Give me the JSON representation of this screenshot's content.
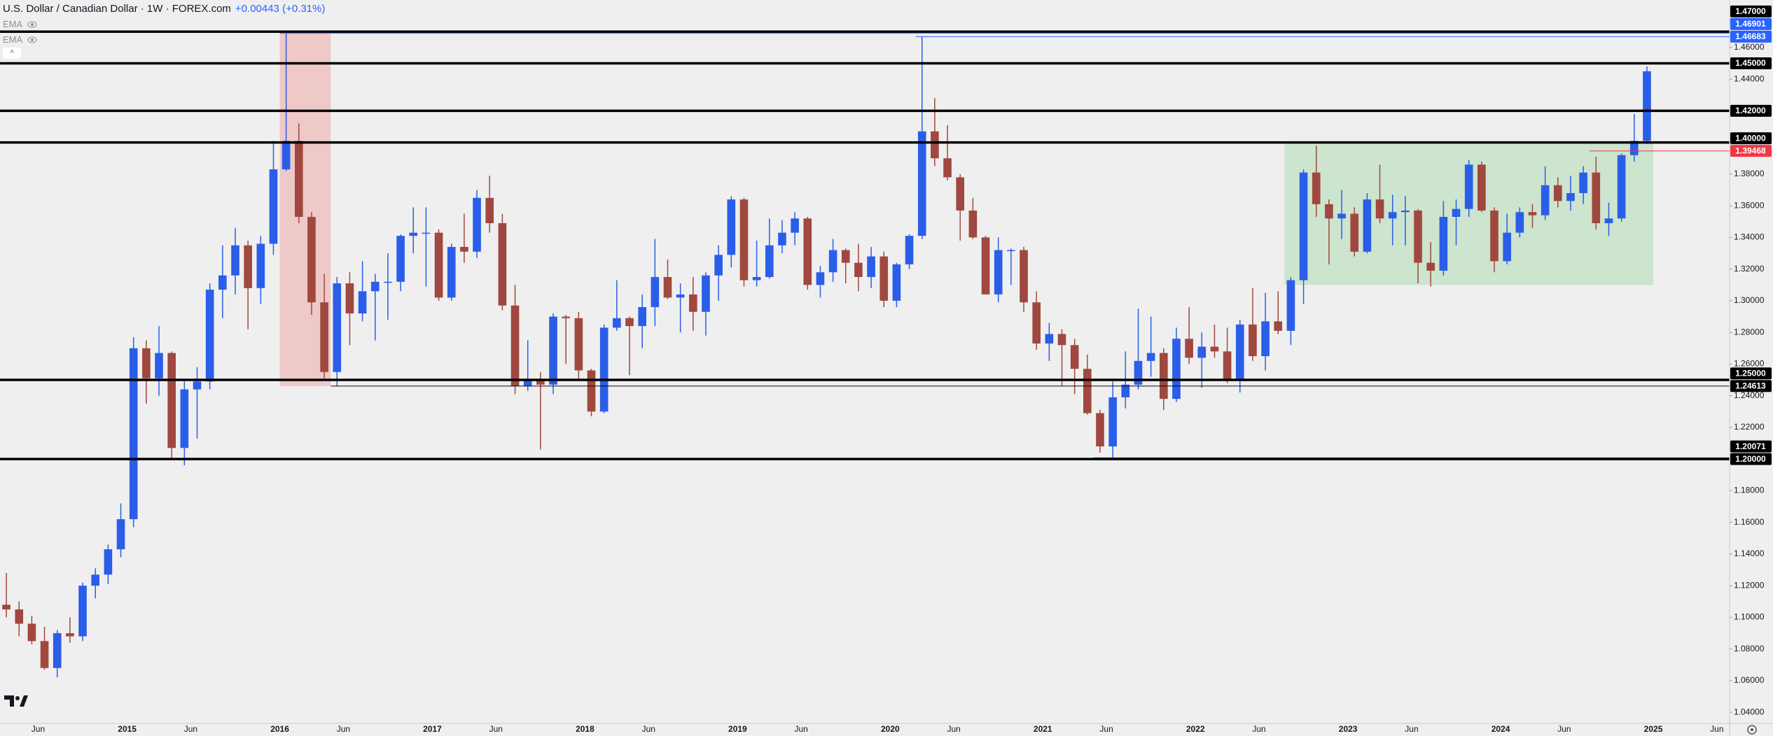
{
  "chart_data": {
    "type": "candlestick",
    "title": "U.S. Dollar / Canadian Dollar · 1W · FOREX.com",
    "change": "+0.00443 (+0.31%)",
    "indicators": [
      "EMA",
      "EMA"
    ],
    "up_color": "#2a5ee8",
    "down_color": "#a0483f",
    "xlim": [
      "2014-03",
      "2025-07"
    ],
    "ylim": [
      1.033,
      1.49
    ],
    "xticks": [
      {
        "value": "2014-06",
        "label": "Jun"
      },
      {
        "value": "2015-01",
        "label": "2015"
      },
      {
        "value": "2015-06",
        "label": "Jun"
      },
      {
        "value": "2016-01",
        "label": "2016"
      },
      {
        "value": "2016-06",
        "label": "Jun"
      },
      {
        "value": "2017-01",
        "label": "2017"
      },
      {
        "value": "2017-06",
        "label": "Jun"
      },
      {
        "value": "2018-01",
        "label": "2018"
      },
      {
        "value": "2018-06",
        "label": "Jun"
      },
      {
        "value": "2019-01",
        "label": "2019"
      },
      {
        "value": "2019-06",
        "label": "Jun"
      },
      {
        "value": "2020-01",
        "label": "2020"
      },
      {
        "value": "2020-06",
        "label": "Jun"
      },
      {
        "value": "2021-01",
        "label": "2021"
      },
      {
        "value": "2021-06",
        "label": "Jun"
      },
      {
        "value": "2022-01",
        "label": "2022"
      },
      {
        "value": "2022-06",
        "label": "Jun"
      },
      {
        "value": "2023-01",
        "label": "2023"
      },
      {
        "value": "2023-06",
        "label": "Jun"
      },
      {
        "value": "2024-01",
        "label": "2024"
      },
      {
        "value": "2024-06",
        "label": "Jun"
      },
      {
        "value": "2025-01",
        "label": "2025"
      },
      {
        "value": "2025-06",
        "label": "Jun"
      }
    ],
    "yticks": [
      {
        "value": 1.04,
        "label": "1.04000"
      },
      {
        "value": 1.06,
        "label": "1.06000"
      },
      {
        "value": 1.08,
        "label": "1.08000"
      },
      {
        "value": 1.1,
        "label": "1.10000"
      },
      {
        "value": 1.12,
        "label": "1.12000"
      },
      {
        "value": 1.14,
        "label": "1.14000"
      },
      {
        "value": 1.16,
        "label": "1.16000"
      },
      {
        "value": 1.18,
        "label": "1.18000"
      },
      {
        "value": 1.22,
        "label": "1.22000"
      },
      {
        "value": 1.24,
        "label": "1.24000"
      },
      {
        "value": 1.26,
        "label": "1.26000"
      },
      {
        "value": 1.28,
        "label": "1.28000"
      },
      {
        "value": 1.3,
        "label": "1.30000"
      },
      {
        "value": 1.32,
        "label": "1.32000"
      },
      {
        "value": 1.34,
        "label": "1.34000"
      },
      {
        "value": 1.36,
        "label": "1.36000"
      },
      {
        "value": 1.38,
        "label": "1.38000"
      },
      {
        "value": 1.44,
        "label": "1.44000"
      },
      {
        "value": 1.46,
        "label": "1.46000"
      }
    ],
    "price_lines": [
      {
        "value": 1.47,
        "label": "1.47000",
        "color": "#000000",
        "style": "thick"
      },
      {
        "value": 1.46901,
        "label": "1.46901",
        "color": "#2962ff",
        "style": "thin",
        "from": "2016-01"
      },
      {
        "value": 1.46683,
        "label": "1.46683",
        "color": "#2962ff",
        "style": "thin",
        "from": "2020-03"
      },
      {
        "value": 1.45,
        "label": "1.45000",
        "color": "#000000",
        "style": "thick"
      },
      {
        "value": 1.42,
        "label": "1.42000",
        "color": "#000000",
        "style": "thick"
      },
      {
        "value": 1.4,
        "label": "1.40000",
        "color": "#000000",
        "style": "thick"
      },
      {
        "value": 1.39468,
        "label": "1.39468",
        "color": "#f23645",
        "style": "thin",
        "from": "2024-08"
      },
      {
        "value": 1.25,
        "label": "1.25000",
        "color": "#000000",
        "style": "thick"
      },
      {
        "value": 1.24613,
        "label": "1.24613",
        "color": "#000000",
        "style": "thin",
        "from": "2016-05"
      },
      {
        "value": 1.20071,
        "label": "1.20071",
        "color": "#000000",
        "style": "thin",
        "from": "2021-05"
      },
      {
        "value": 1.2,
        "label": "1.20000",
        "color": "#000000",
        "style": "thick"
      }
    ],
    "zones": [
      {
        "x": [
          "2016-01",
          "2016-05"
        ],
        "y": [
          1.24613,
          1.47
        ],
        "color": "#ef9a9a"
      },
      {
        "x": [
          "2022-08",
          "2025-01"
        ],
        "y": [
          1.31,
          1.4
        ],
        "color": "#a5d6a7"
      }
    ],
    "x": [
      "2014-03",
      "2014-04",
      "2014-05",
      "2014-06",
      "2014-07",
      "2014-08",
      "2014-09",
      "2014-10",
      "2014-11",
      "2014-12",
      "2015-01",
      "2015-02",
      "2015-03",
      "2015-04",
      "2015-05",
      "2015-06",
      "2015-07",
      "2015-08",
      "2015-09",
      "2015-10",
      "2015-11",
      "2015-12",
      "2016-01",
      "2016-02",
      "2016-03",
      "2016-04",
      "2016-05",
      "2016-06",
      "2016-07",
      "2016-08",
      "2016-09",
      "2016-10",
      "2016-11",
      "2016-12",
      "2017-01",
      "2017-02",
      "2017-03",
      "2017-04",
      "2017-05",
      "2017-06",
      "2017-07",
      "2017-08",
      "2017-09",
      "2017-10",
      "2017-11",
      "2017-12",
      "2018-01",
      "2018-02",
      "2018-03",
      "2018-04",
      "2018-05",
      "2018-06",
      "2018-07",
      "2018-08",
      "2018-09",
      "2018-10",
      "2018-11",
      "2018-12",
      "2019-01",
      "2019-02",
      "2019-03",
      "2019-04",
      "2019-05",
      "2019-06",
      "2019-07",
      "2019-08",
      "2019-09",
      "2019-10",
      "2019-11",
      "2019-12",
      "2020-01",
      "2020-02",
      "2020-03",
      "2020-04",
      "2020-05",
      "2020-06",
      "2020-07",
      "2020-08",
      "2020-09",
      "2020-10",
      "2020-11",
      "2020-12",
      "2021-01",
      "2021-02",
      "2021-03",
      "2021-04",
      "2021-05",
      "2021-06",
      "2021-07",
      "2021-08",
      "2021-09",
      "2021-10",
      "2021-11",
      "2021-12",
      "2022-01",
      "2022-02",
      "2022-03",
      "2022-04",
      "2022-05",
      "2022-06",
      "2022-07",
      "2022-08",
      "2022-09",
      "2022-10",
      "2022-11",
      "2022-12",
      "2023-01",
      "2023-02",
      "2023-03",
      "2023-04",
      "2023-05",
      "2023-06",
      "2023-07",
      "2023-08",
      "2023-09",
      "2023-10",
      "2023-11",
      "2023-12",
      "2024-01",
      "2024-02",
      "2024-03",
      "2024-04",
      "2024-05",
      "2024-06",
      "2024-07",
      "2024-08",
      "2024-09",
      "2024-10",
      "2024-11",
      "2024-12"
    ],
    "open": [
      1.108,
      1.105,
      1.096,
      1.085,
      1.068,
      1.09,
      1.088,
      1.12,
      1.127,
      1.143,
      1.162,
      1.27,
      1.251,
      1.267,
      1.207,
      1.244,
      1.249,
      1.307,
      1.316,
      1.335,
      1.308,
      1.336,
      1.383,
      1.401,
      1.353,
      1.299,
      1.255,
      1.311,
      1.292,
      1.306,
      1.312,
      1.312,
      1.341,
      1.343,
      1.343,
      1.302,
      1.334,
      1.331,
      1.365,
      1.349,
      1.297,
      1.246,
      1.25,
      1.247,
      1.29,
      1.289,
      1.256,
      1.23,
      1.283,
      1.289,
      1.284,
      1.296,
      1.315,
      1.302,
      1.304,
      1.293,
      1.316,
      1.329,
      1.364,
      1.313,
      1.315,
      1.335,
      1.343,
      1.352,
      1.31,
      1.318,
      1.332,
      1.324,
      1.315,
      1.328,
      1.3,
      1.323,
      1.341,
      1.407,
      1.39,
      1.378,
      1.357,
      1.34,
      1.304,
      1.332,
      1.332,
      1.299,
      1.273,
      1.279,
      1.272,
      1.257,
      1.229,
      1.208,
      1.239,
      1.247,
      1.262,
      1.267,
      1.238,
      1.276,
      1.264,
      1.271,
      1.268,
      1.25,
      1.285,
      1.265,
      1.287,
      1.281,
      1.313,
      1.381,
      1.361,
      1.352,
      1.355,
      1.331,
      1.364,
      1.352,
      1.356,
      1.357,
      1.324,
      1.319,
      1.353,
      1.358,
      1.386,
      1.357,
      1.325,
      1.343,
      1.356,
      1.354,
      1.373,
      1.363,
      1.368,
      1.381,
      1.349,
      1.352,
      1.392,
      1.401
    ],
    "high": [
      1.128,
      1.11,
      1.101,
      1.094,
      1.092,
      1.1,
      1.122,
      1.131,
      1.146,
      1.172,
      1.277,
      1.275,
      1.284,
      1.268,
      1.249,
      1.258,
      1.311,
      1.335,
      1.346,
      1.338,
      1.341,
      1.401,
      1.469,
      1.412,
      1.356,
      1.317,
      1.315,
      1.318,
      1.325,
      1.317,
      1.33,
      1.342,
      1.359,
      1.359,
      1.345,
      1.336,
      1.355,
      1.37,
      1.379,
      1.355,
      1.31,
      1.275,
      1.255,
      1.292,
      1.291,
      1.293,
      1.257,
      1.285,
      1.313,
      1.29,
      1.304,
      1.339,
      1.326,
      1.311,
      1.315,
      1.318,
      1.335,
      1.366,
      1.365,
      1.338,
      1.352,
      1.351,
      1.356,
      1.353,
      1.322,
      1.339,
      1.333,
      1.336,
      1.334,
      1.331,
      1.324,
      1.342,
      1.467,
      1.428,
      1.411,
      1.38,
      1.365,
      1.341,
      1.34,
      1.333,
      1.334,
      1.306,
      1.286,
      1.282,
      1.276,
      1.266,
      1.231,
      1.249,
      1.268,
      1.295,
      1.29,
      1.27,
      1.283,
      1.296,
      1.28,
      1.285,
      1.283,
      1.288,
      1.308,
      1.305,
      1.306,
      1.315,
      1.383,
      1.398,
      1.364,
      1.37,
      1.359,
      1.368,
      1.386,
      1.367,
      1.366,
      1.358,
      1.337,
      1.363,
      1.364,
      1.389,
      1.388,
      1.359,
      1.355,
      1.359,
      1.361,
      1.385,
      1.378,
      1.379,
      1.385,
      1.391,
      1.362,
      1.393,
      1.418,
      1.448
    ],
    "low": [
      1.1,
      1.088,
      1.083,
      1.067,
      1.062,
      1.084,
      1.085,
      1.112,
      1.121,
      1.138,
      1.157,
      1.235,
      1.24,
      1.2,
      1.196,
      1.213,
      1.244,
      1.289,
      1.304,
      1.282,
      1.298,
      1.329,
      1.382,
      1.349,
      1.291,
      1.251,
      1.246,
      1.272,
      1.287,
      1.275,
      1.288,
      1.306,
      1.33,
      1.309,
      1.3,
      1.3,
      1.324,
      1.327,
      1.343,
      1.294,
      1.241,
      1.243,
      1.206,
      1.241,
      1.26,
      1.25,
      1.227,
      1.229,
      1.281,
      1.253,
      1.27,
      1.284,
      1.301,
      1.28,
      1.281,
      1.278,
      1.3,
      1.321,
      1.309,
      1.309,
      1.314,
      1.33,
      1.335,
      1.307,
      1.302,
      1.312,
      1.311,
      1.306,
      1.308,
      1.296,
      1.296,
      1.32,
      1.339,
      1.385,
      1.376,
      1.338,
      1.339,
      1.304,
      1.299,
      1.31,
      1.293,
      1.269,
      1.262,
      1.246,
      1.241,
      1.228,
      1.204,
      1.201,
      1.232,
      1.244,
      1.252,
      1.231,
      1.236,
      1.26,
      1.245,
      1.264,
      1.248,
      1.242,
      1.262,
      1.256,
      1.279,
      1.272,
      1.298,
      1.353,
      1.323,
      1.339,
      1.328,
      1.33,
      1.349,
      1.335,
      1.335,
      1.311,
      1.309,
      1.316,
      1.335,
      1.353,
      1.356,
      1.318,
      1.323,
      1.34,
      1.346,
      1.351,
      1.359,
      1.357,
      1.361,
      1.345,
      1.341,
      1.35,
      1.388,
      1.399
    ],
    "close": [
      1.105,
      1.096,
      1.085,
      1.068,
      1.09,
      1.088,
      1.12,
      1.127,
      1.143,
      1.162,
      1.27,
      1.251,
      1.267,
      1.207,
      1.244,
      1.249,
      1.307,
      1.316,
      1.335,
      1.308,
      1.336,
      1.383,
      1.401,
      1.353,
      1.299,
      1.255,
      1.311,
      1.292,
      1.306,
      1.312,
      1.312,
      1.341,
      1.343,
      1.343,
      1.302,
      1.334,
      1.331,
      1.365,
      1.349,
      1.297,
      1.246,
      1.25,
      1.247,
      1.29,
      1.289,
      1.256,
      1.23,
      1.283,
      1.289,
      1.284,
      1.296,
      1.315,
      1.302,
      1.304,
      1.293,
      1.316,
      1.329,
      1.364,
      1.313,
      1.315,
      1.335,
      1.343,
      1.352,
      1.31,
      1.318,
      1.332,
      1.324,
      1.315,
      1.328,
      1.3,
      1.323,
      1.341,
      1.407,
      1.39,
      1.378,
      1.357,
      1.34,
      1.304,
      1.332,
      1.332,
      1.299,
      1.273,
      1.279,
      1.272,
      1.257,
      1.229,
      1.208,
      1.239,
      1.247,
      1.262,
      1.267,
      1.238,
      1.276,
      1.264,
      1.271,
      1.268,
      1.25,
      1.285,
      1.265,
      1.287,
      1.281,
      1.313,
      1.381,
      1.361,
      1.352,
      1.355,
      1.331,
      1.364,
      1.352,
      1.356,
      1.357,
      1.324,
      1.319,
      1.353,
      1.358,
      1.386,
      1.357,
      1.325,
      1.343,
      1.356,
      1.354,
      1.373,
      1.363,
      1.368,
      1.381,
      1.349,
      1.352,
      1.392,
      1.401,
      1.445
    ]
  }
}
